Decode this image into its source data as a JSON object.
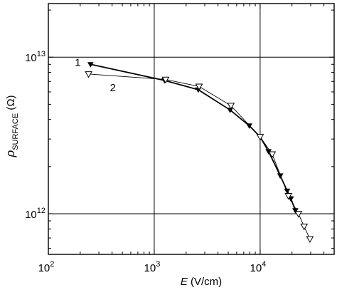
{
  "chart_data": {
    "type": "line",
    "x_scale": "log",
    "y_scale": "log",
    "xlim": [
      100,
      50000
    ],
    "ylim": [
      550000000000,
      22000000000000
    ],
    "grid": "major",
    "xlabel_italic": "E",
    "xlabel_unit": " (V/cm)",
    "ylabel_symbol": "ρ",
    "ylabel_subscript": "SURFACE",
    "ylabel_unit": " (Ω)",
    "x_ticks": [
      {
        "value": 100,
        "base": "10",
        "exp": "2"
      },
      {
        "value": 1000,
        "base": "10",
        "exp": "3"
      },
      {
        "value": 10000,
        "base": "10",
        "exp": "4"
      }
    ],
    "y_ticks": [
      {
        "value": 1000000000000,
        "base": "10",
        "exp": "12"
      },
      {
        "value": 10000000000000,
        "base": "10",
        "exp": "13"
      }
    ],
    "series": [
      {
        "name": "1",
        "marker": "filled-down-triangle",
        "color": "#000000",
        "points": [
          [
            250,
            9000000000000
          ],
          [
            1250,
            7100000000000
          ],
          [
            2600,
            6200000000000
          ],
          [
            5200,
            4600000000000
          ],
          [
            7900,
            3650000000000
          ],
          [
            10000,
            3100000000000
          ],
          [
            12000,
            2500000000000
          ],
          [
            15500,
            1750000000000
          ],
          [
            18000,
            1400000000000
          ],
          [
            19500,
            1250000000000
          ],
          [
            21500,
            1050000000000
          ]
        ]
      },
      {
        "name": "2",
        "marker": "open-down-triangle",
        "color": "#000000",
        "points": [
          [
            240,
            7800000000000
          ],
          [
            1280,
            7200000000000
          ],
          [
            2650,
            6500000000000
          ],
          [
            5300,
            4900000000000
          ],
          [
            10000,
            3100000000000
          ],
          [
            13000,
            2400000000000
          ],
          [
            18500,
            1300000000000
          ],
          [
            23000,
            1000000000000
          ],
          [
            26000,
            830000000000
          ],
          [
            29500,
            690000000000
          ]
        ]
      }
    ]
  }
}
